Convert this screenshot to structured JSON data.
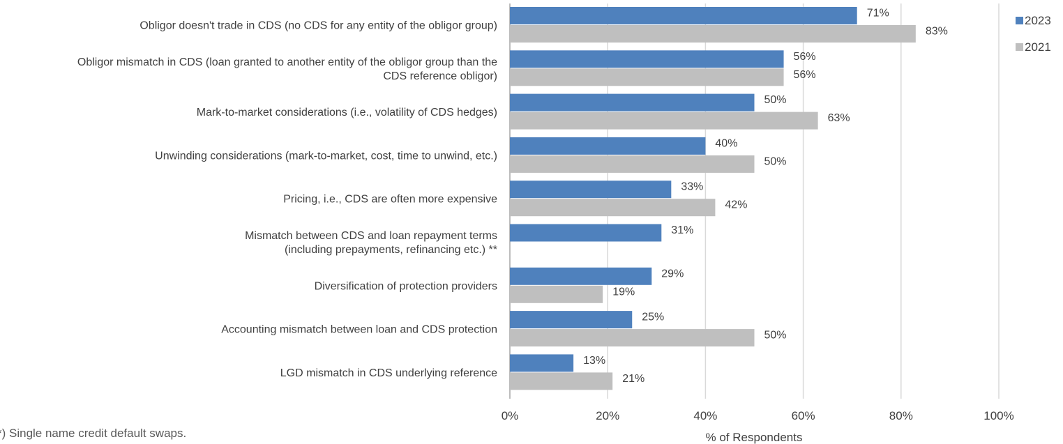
{
  "footnote": "*) Single name credit default swaps.",
  "colors": {
    "2023": "#4f81bd",
    "2021": "#bfbfbf",
    "grid": "#d9d9d9",
    "text": "#404040"
  },
  "chart_data": {
    "type": "bar",
    "orientation": "horizontal",
    "categories": [
      [
        "Obligor doesn't trade in CDS (no CDS for any entity of the obligor group)"
      ],
      [
        "Obligor mismatch in CDS (loan granted to another entity of the obligor group than the",
        "CDS reference obligor)"
      ],
      [
        "Mark-to-market considerations (i.e., volatility of CDS hedges)"
      ],
      [
        "Unwinding considerations (mark-to-market, cost, time to unwind, etc.)"
      ],
      [
        "Pricing, i.e., CDS are often more expensive"
      ],
      [
        "Mismatch between CDS and loan repayment terms",
        "(including prepayments, refinancing etc.) **"
      ],
      [
        "Diversification of protection providers"
      ],
      [
        "Accounting mismatch between loan and CDS protection"
      ],
      [
        "LGD mismatch in CDS underlying reference"
      ]
    ],
    "series": [
      {
        "name": "2023",
        "values": [
          71,
          56,
          50,
          40,
          33,
          31,
          29,
          25,
          13
        ],
        "labels": [
          "71%",
          "56%",
          "50%",
          "40%",
          "33%",
          "31%",
          "29%",
          "25%",
          "13%"
        ]
      },
      {
        "name": "2021",
        "values": [
          83,
          56,
          63,
          50,
          42,
          null,
          19,
          50,
          21
        ],
        "labels": [
          "83%",
          "56%",
          "63%",
          "50%",
          "42%",
          "",
          "19%",
          "50%",
          "21%"
        ]
      }
    ],
    "xlim": [
      0,
      100
    ],
    "xticks": [
      "0%",
      "20%",
      "40%",
      "60%",
      "80%",
      "100%"
    ],
    "xlabel": "% of Respondents",
    "grid": true,
    "legend_position": "top-right"
  }
}
